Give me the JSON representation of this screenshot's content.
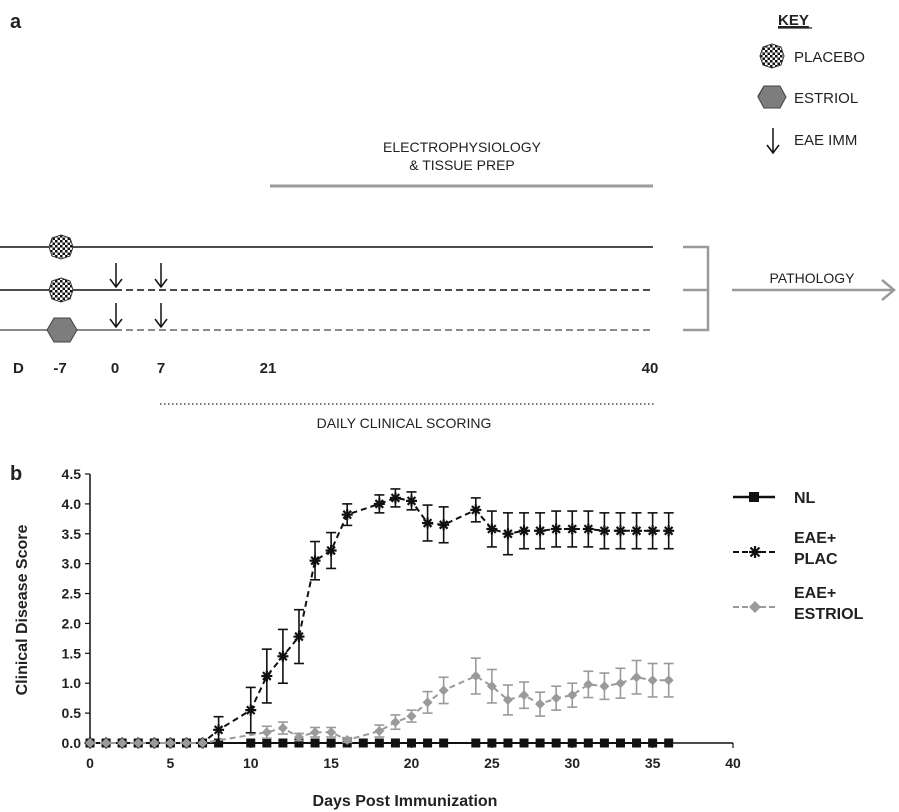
{
  "panel_a": {
    "label": "a",
    "key": {
      "title": "KEY",
      "placebo": "PLACEBO",
      "estriol": "ESTRIOL",
      "eae_imm": "EAE IMM"
    },
    "electro_line1": "ELECTROPHYSIOLOGY",
    "electro_line2": "& TISSUE PREP",
    "pathology": "PATHOLOGY",
    "daily_scoring": "DAILY CLINICAL SCORING",
    "day_labels": [
      "D",
      "-7",
      "0",
      "7",
      "21",
      "40"
    ]
  },
  "chart_data": {
    "type": "line",
    "panel_label": "b",
    "title": "",
    "xlabel": "Days Post Immunization",
    "ylabel": "Clinical  Disease Score",
    "xlim": [
      0,
      40
    ],
    "ylim": [
      0,
      4.5
    ],
    "xticks": [
      0,
      5,
      10,
      15,
      20,
      25,
      30,
      35,
      40
    ],
    "yticks": [
      "0.0",
      "0.5",
      "1.0",
      "1.5",
      "2.0",
      "2.5",
      "3.0",
      "3.5",
      "4.0",
      "4.5"
    ],
    "legend_position": "right",
    "grid": false,
    "series": [
      {
        "name": "NL",
        "color": "#111111",
        "marker": "square",
        "dash": "solid",
        "x": [
          0,
          1,
          2,
          3,
          4,
          5,
          6,
          7,
          8,
          10,
          11,
          12,
          13,
          14,
          15,
          16,
          17,
          18,
          19,
          20,
          21,
          22,
          24,
          25,
          26,
          27,
          28,
          29,
          30,
          31,
          32,
          33,
          34,
          35,
          36
        ],
        "y": [
          0,
          0,
          0,
          0,
          0,
          0,
          0,
          0,
          0,
          0,
          0,
          0,
          0,
          0,
          0,
          0,
          0,
          0,
          0,
          0,
          0,
          0,
          0,
          0,
          0,
          0,
          0,
          0,
          0,
          0,
          0,
          0,
          0,
          0,
          0
        ],
        "err": []
      },
      {
        "name": "EAE+ PLAC",
        "color": "#111111",
        "marker": "star",
        "dash": "dashed",
        "x": [
          0,
          1,
          2,
          3,
          4,
          5,
          6,
          7,
          8,
          10,
          11,
          12,
          13,
          14,
          15,
          16,
          18,
          19,
          20,
          21,
          22,
          24,
          25,
          26,
          27,
          28,
          29,
          30,
          31,
          32,
          33,
          34,
          35,
          36
        ],
        "y": [
          0,
          0,
          0,
          0,
          0,
          0,
          0,
          0,
          0.22,
          0.55,
          1.12,
          1.45,
          1.78,
          3.05,
          3.22,
          3.82,
          4.0,
          4.1,
          4.05,
          3.68,
          3.65,
          3.9,
          3.58,
          3.5,
          3.55,
          3.55,
          3.58,
          3.58,
          3.58,
          3.55,
          3.55,
          3.55,
          3.55,
          3.55
        ],
        "err": [
          0,
          0,
          0,
          0,
          0,
          0,
          0,
          0,
          0.22,
          0.38,
          0.45,
          0.45,
          0.45,
          0.32,
          0.3,
          0.18,
          0.15,
          0.15,
          0.15,
          0.3,
          0.3,
          0.2,
          0.3,
          0.35,
          0.3,
          0.3,
          0.3,
          0.3,
          0.3,
          0.3,
          0.3,
          0.3,
          0.3,
          0.3
        ]
      },
      {
        "name": "EAE+ ESTRIOL",
        "color": "#9a9a9a",
        "marker": "diamond",
        "dash": "dashed",
        "x": [
          0,
          1,
          2,
          3,
          4,
          5,
          6,
          7,
          11,
          12,
          13,
          14,
          15,
          16,
          18,
          19,
          20,
          21,
          22,
          24,
          25,
          26,
          27,
          28,
          29,
          30,
          31,
          32,
          33,
          34,
          35,
          36
        ],
        "y": [
          0,
          0,
          0,
          0,
          0,
          0,
          0,
          0,
          0.18,
          0.25,
          0.1,
          0.18,
          0.18,
          0.05,
          0.2,
          0.35,
          0.45,
          0.68,
          0.88,
          1.12,
          0.95,
          0.72,
          0.8,
          0.65,
          0.75,
          0.8,
          0.98,
          0.95,
          1.0,
          1.1,
          1.05,
          1.05
        ],
        "err": [
          0,
          0,
          0,
          0,
          0,
          0,
          0,
          0,
          0.1,
          0.1,
          0.06,
          0.08,
          0.08,
          0.04,
          0.1,
          0.12,
          0.1,
          0.18,
          0.22,
          0.3,
          0.28,
          0.25,
          0.22,
          0.2,
          0.2,
          0.2,
          0.22,
          0.22,
          0.25,
          0.28,
          0.28,
          0.28
        ]
      }
    ]
  }
}
